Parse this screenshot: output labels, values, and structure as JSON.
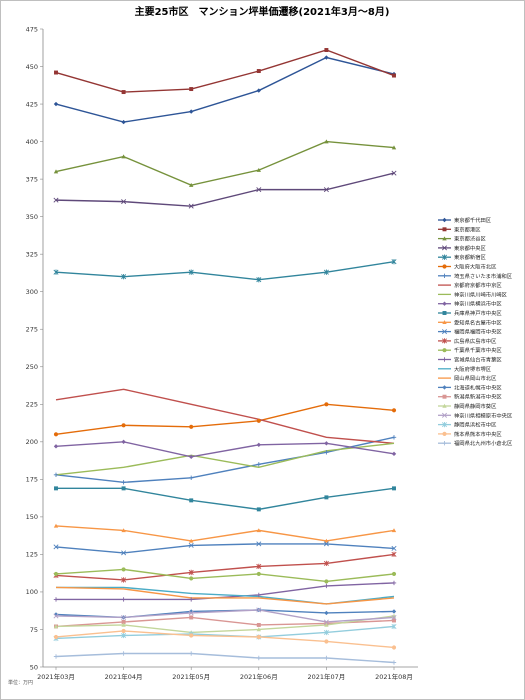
{
  "chart_data": {
    "type": "line",
    "title": "主要25市区　マンション坪単価遷移(2021年3月～8月)",
    "unit_note": "単位：万円",
    "categories": [
      "2021年03月",
      "2021年04月",
      "2021年05月",
      "2021年06月",
      "2021年07月",
      "2021年08月"
    ],
    "ylim": [
      50,
      475
    ],
    "yticks": [
      50,
      75,
      100,
      125,
      150,
      175,
      200,
      225,
      250,
      275,
      300,
      325,
      350,
      375,
      400,
      425,
      450,
      475
    ],
    "grid": false,
    "legend_position": "right",
    "series": [
      {
        "name": "東京都千代田区",
        "color": "#2E5597",
        "marker": "diamond",
        "values": [
          425,
          413,
          420,
          434,
          456,
          445
        ]
      },
      {
        "name": "東京都港区",
        "color": "#943634",
        "marker": "square",
        "values": [
          446,
          433,
          435,
          447,
          461,
          444
        ]
      },
      {
        "name": "東京都渋谷区",
        "color": "#76923C",
        "marker": "triangle",
        "values": [
          380,
          390,
          371,
          381,
          400,
          396
        ]
      },
      {
        "name": "東京都中央区",
        "color": "#5F497A",
        "marker": "x",
        "values": [
          361,
          360,
          357,
          368,
          368,
          379
        ]
      },
      {
        "name": "東京都新宿区",
        "color": "#31859C",
        "marker": "star",
        "values": [
          313,
          310,
          313,
          308,
          313,
          320
        ]
      },
      {
        "name": "大阪府大阪市北区",
        "color": "#E46C0A",
        "marker": "circle",
        "values": [
          205,
          211,
          210,
          214,
          225,
          221
        ]
      },
      {
        "name": "埼玉県さいたま市浦和区",
        "color": "#4F81BD",
        "marker": "plus",
        "values": [
          178,
          173,
          176,
          185,
          193,
          203
        ]
      },
      {
        "name": "京都府京都市中京区",
        "color": "#C0504D",
        "marker": "line",
        "values": [
          228,
          235,
          225,
          215,
          203,
          199
        ]
      },
      {
        "name": "神奈川県川崎市川崎区",
        "color": "#9BBB59",
        "marker": "line",
        "values": [
          178,
          183,
          191,
          183,
          194,
          199
        ]
      },
      {
        "name": "神奈川県横浜市中区",
        "color": "#8064A2",
        "marker": "diamond",
        "values": [
          197,
          200,
          190,
          198,
          199,
          192
        ]
      },
      {
        "name": "兵庫県神戸市中央区",
        "color": "#31859C",
        "marker": "square",
        "values": [
          169,
          169,
          161,
          155,
          163,
          169
        ]
      },
      {
        "name": "愛知県名古屋市中区",
        "color": "#F79646",
        "marker": "triangle",
        "values": [
          144,
          141,
          134,
          141,
          134,
          141
        ]
      },
      {
        "name": "福岡県福岡市中央区",
        "color": "#4F81BD",
        "marker": "x",
        "values": [
          130,
          126,
          131,
          132,
          132,
          129
        ]
      },
      {
        "name": "広島県広島市中区",
        "color": "#C0504D",
        "marker": "star",
        "values": [
          111,
          108,
          113,
          117,
          119,
          125
        ]
      },
      {
        "name": "千葉県千葉市中央区",
        "color": "#9BBB59",
        "marker": "circle",
        "values": [
          112,
          115,
          109,
          112,
          107,
          112
        ]
      },
      {
        "name": "宮城県仙台市青葉区",
        "color": "#8064A2",
        "marker": "plus",
        "values": [
          95,
          95,
          95,
          98,
          104,
          106
        ]
      },
      {
        "name": "大阪府堺市堺区",
        "color": "#4BACC6",
        "marker": "line",
        "values": [
          103,
          103,
          99,
          97,
          92,
          97
        ]
      },
      {
        "name": "岡山県岡山市北区",
        "color": "#F79646",
        "marker": "line",
        "values": [
          103,
          102,
          96,
          96,
          92,
          96
        ]
      },
      {
        "name": "北海道札幌市中央区",
        "color": "#4F81BD",
        "marker": "diamond",
        "values": [
          85,
          83,
          87,
          88,
          86,
          87
        ]
      },
      {
        "name": "新潟県新潟市中央区",
        "color": "#D99694",
        "marker": "square",
        "values": [
          77,
          80,
          83,
          78,
          79,
          81
        ]
      },
      {
        "name": "静岡県静岡市葵区",
        "color": "#C3D69B",
        "marker": "triangle",
        "values": [
          77,
          78,
          73,
          75,
          78,
          84
        ]
      },
      {
        "name": "神奈川県相模原市中央区",
        "color": "#B2A1C7",
        "marker": "x",
        "values": [
          84,
          83,
          86,
          88,
          80,
          83
        ]
      },
      {
        "name": "静岡県浜松市中区",
        "color": "#93CDDD",
        "marker": "star",
        "values": [
          69,
          71,
          72,
          70,
          73,
          77
        ]
      },
      {
        "name": "熊本県熊本市中央区",
        "color": "#FAC090",
        "marker": "circle",
        "values": [
          70,
          74,
          71,
          70,
          67,
          63
        ]
      },
      {
        "name": "福岡県北九州市小倉北区",
        "color": "#A6BDDB",
        "marker": "plus",
        "values": [
          57,
          59,
          59,
          56,
          56,
          53
        ]
      }
    ]
  }
}
